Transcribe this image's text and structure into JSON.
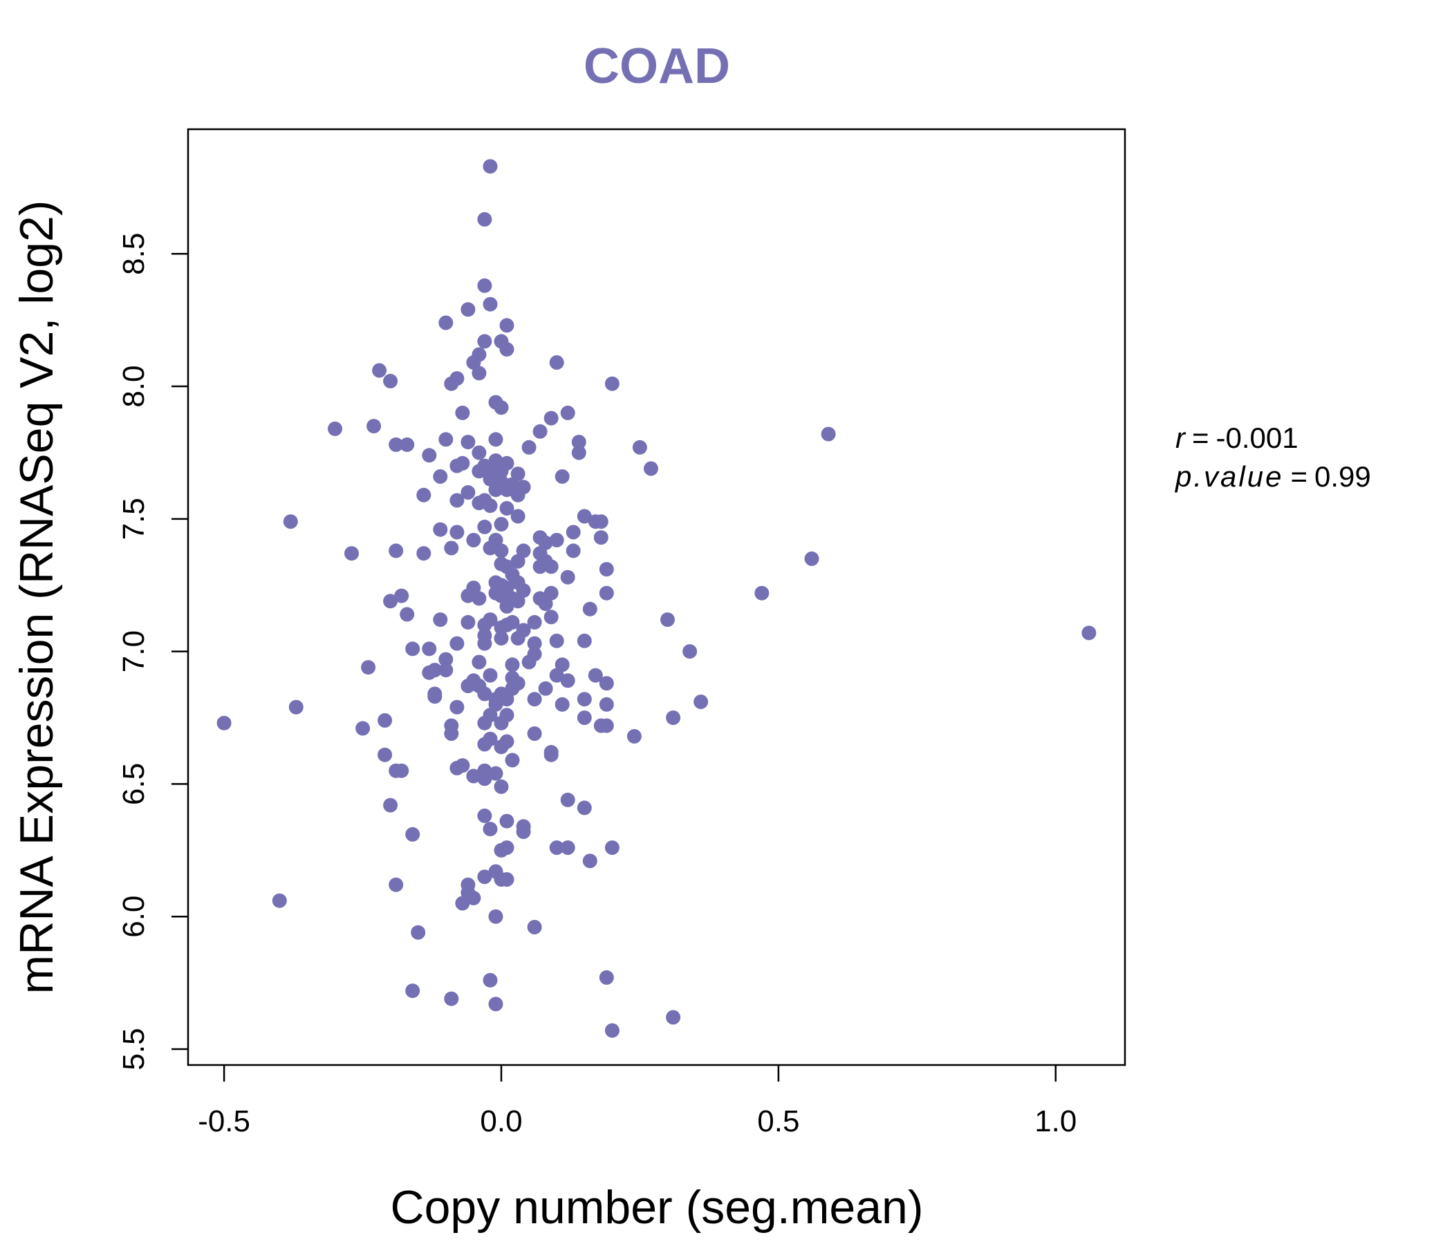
{
  "chart_data": {
    "type": "scatter",
    "title": "COAD",
    "xlabel": "Copy number (seg.mean)",
    "ylabel": "mRNA Expression (RNASeq V2, log2)",
    "xlim": [
      -0.565,
      1.125
    ],
    "ylim": [
      5.44,
      8.97
    ],
    "x_ticks": [
      -0.5,
      0.0,
      0.5,
      1.0
    ],
    "x_tick_labels": [
      "-0.5",
      "0.0",
      "0.5",
      "1.0"
    ],
    "y_ticks": [
      5.5,
      6.0,
      6.5,
      7.0,
      7.5,
      8.0,
      8.5
    ],
    "y_tick_labels": [
      "5.5",
      "6.0",
      "6.5",
      "7.0",
      "7.5",
      "8.0",
      "8.5"
    ],
    "grid": false,
    "legend": "none",
    "colors": {
      "points": "#7570b3",
      "title": "#7570b3",
      "axes": "#000000"
    },
    "annotation": {
      "r_symbol": "r",
      "r_value": "-0.001",
      "p_symbol": "p.value",
      "p_value": "0.99",
      "equals": "="
    },
    "series": [
      {
        "points": [
          [
            -0.02,
            8.83
          ],
          [
            -0.03,
            8.63
          ],
          [
            -0.03,
            8.38
          ],
          [
            -0.02,
            8.31
          ],
          [
            -0.06,
            8.29
          ],
          [
            -0.1,
            8.24
          ],
          [
            0.01,
            8.23
          ],
          [
            -0.03,
            8.17
          ],
          [
            0.0,
            8.17
          ],
          [
            0.01,
            8.14
          ],
          [
            -0.04,
            8.12
          ],
          [
            0.1,
            8.09
          ],
          [
            -0.05,
            8.09
          ],
          [
            -0.22,
            8.06
          ],
          [
            -0.04,
            8.05
          ],
          [
            -0.08,
            8.03
          ],
          [
            -0.2,
            8.02
          ],
          [
            -0.09,
            8.01
          ],
          [
            0.2,
            8.01
          ],
          [
            -0.01,
            7.94
          ],
          [
            0.0,
            7.92
          ],
          [
            0.12,
            7.9
          ],
          [
            -0.07,
            7.9
          ],
          [
            0.09,
            7.88
          ],
          [
            -0.3,
            7.84
          ],
          [
            -0.23,
            7.85
          ],
          [
            0.07,
            7.83
          ],
          [
            0.59,
            7.82
          ],
          [
            -0.01,
            7.8
          ],
          [
            -0.1,
            7.8
          ],
          [
            0.14,
            7.79
          ],
          [
            -0.06,
            7.79
          ],
          [
            -0.19,
            7.78
          ],
          [
            -0.17,
            7.78
          ],
          [
            0.25,
            7.77
          ],
          [
            0.05,
            7.77
          ],
          [
            0.14,
            7.75
          ],
          [
            -0.04,
            7.75
          ],
          [
            -0.13,
            7.74
          ],
          [
            -0.07,
            7.71
          ],
          [
            -0.08,
            7.7
          ],
          [
            0.27,
            7.69
          ],
          [
            -0.01,
            7.72
          ],
          [
            0.01,
            7.71
          ],
          [
            -0.03,
            7.7
          ],
          [
            -0.02,
            7.69
          ],
          [
            0.0,
            7.68
          ],
          [
            -0.04,
            7.68
          ],
          [
            0.03,
            7.67
          ],
          [
            0.11,
            7.66
          ],
          [
            -0.11,
            7.66
          ],
          [
            -0.02,
            7.65
          ],
          [
            0.0,
            7.64
          ],
          [
            0.02,
            7.63
          ],
          [
            0.04,
            7.62
          ],
          [
            -0.01,
            7.61
          ],
          [
            0.01,
            7.61
          ],
          [
            -0.06,
            7.6
          ],
          [
            0.03,
            7.59
          ],
          [
            -0.14,
            7.59
          ],
          [
            -0.03,
            7.57
          ],
          [
            -0.08,
            7.57
          ],
          [
            -0.04,
            7.56
          ],
          [
            -0.02,
            7.55
          ],
          [
            0.01,
            7.54
          ],
          [
            0.15,
            7.51
          ],
          [
            0.03,
            7.51
          ],
          [
            -0.38,
            7.49
          ],
          [
            0.17,
            7.49
          ],
          [
            0.18,
            7.49
          ],
          [
            0.0,
            7.48
          ],
          [
            -0.03,
            7.47
          ],
          [
            -0.11,
            7.46
          ],
          [
            -0.08,
            7.45
          ],
          [
            0.13,
            7.45
          ],
          [
            0.07,
            7.43
          ],
          [
            0.18,
            7.43
          ],
          [
            -0.05,
            7.42
          ],
          [
            0.1,
            7.42
          ],
          [
            -0.01,
            7.42
          ],
          [
            0.08,
            7.41
          ],
          [
            -0.02,
            7.39
          ],
          [
            -0.09,
            7.39
          ],
          [
            0.0,
            7.38
          ],
          [
            0.04,
            7.38
          ],
          [
            -0.19,
            7.38
          ],
          [
            -0.14,
            7.37
          ],
          [
            0.13,
            7.38
          ],
          [
            -0.27,
            7.37
          ],
          [
            0.07,
            7.37
          ],
          [
            0.56,
            7.35
          ],
          [
            0.03,
            7.34
          ],
          [
            0.08,
            7.34
          ],
          [
            0.0,
            7.33
          ],
          [
            0.19,
            7.31
          ],
          [
            0.01,
            7.32
          ],
          [
            0.07,
            7.32
          ],
          [
            0.09,
            7.32
          ],
          [
            0.12,
            7.28
          ],
          [
            0.02,
            7.29
          ],
          [
            -0.01,
            7.26
          ],
          [
            0.03,
            7.26
          ],
          [
            0.0,
            7.25
          ],
          [
            -0.05,
            7.24
          ],
          [
            0.01,
            7.24
          ],
          [
            0.04,
            7.23
          ],
          [
            0.19,
            7.22
          ],
          [
            0.47,
            7.22
          ],
          [
            -0.01,
            7.22
          ],
          [
            0.09,
            7.22
          ],
          [
            -0.06,
            7.21
          ],
          [
            -0.18,
            7.21
          ],
          [
            0.0,
            7.21
          ],
          [
            -0.04,
            7.2
          ],
          [
            0.07,
            7.2
          ],
          [
            0.02,
            7.2
          ],
          [
            -0.2,
            7.19
          ],
          [
            0.03,
            7.19
          ],
          [
            0.08,
            7.18
          ],
          [
            0.01,
            7.17
          ],
          [
            0.16,
            7.16
          ],
          [
            -0.17,
            7.14
          ],
          [
            0.09,
            7.13
          ],
          [
            -0.02,
            7.12
          ],
          [
            0.3,
            7.12
          ],
          [
            -0.11,
            7.12
          ],
          [
            -0.06,
            7.11
          ],
          [
            0.06,
            7.11
          ],
          [
            0.02,
            7.11
          ],
          [
            -0.03,
            7.1
          ],
          [
            0.01,
            7.1
          ],
          [
            0.0,
            7.09
          ],
          [
            0.04,
            7.08
          ],
          [
            1.06,
            7.07
          ],
          [
            -0.03,
            7.06
          ],
          [
            0.0,
            7.05
          ],
          [
            0.03,
            7.05
          ],
          [
            0.1,
            7.04
          ],
          [
            0.15,
            7.04
          ],
          [
            -0.03,
            7.03
          ],
          [
            -0.08,
            7.03
          ],
          [
            0.06,
            7.03
          ],
          [
            -0.13,
            7.01
          ],
          [
            -0.16,
            7.01
          ],
          [
            0.34,
            7.0
          ],
          [
            0.06,
            6.99
          ],
          [
            -0.1,
            6.97
          ],
          [
            0.05,
            6.96
          ],
          [
            -0.04,
            6.96
          ],
          [
            0.11,
            6.95
          ],
          [
            0.02,
            6.95
          ],
          [
            -0.24,
            6.94
          ],
          [
            -0.12,
            6.93
          ],
          [
            -0.1,
            6.93
          ],
          [
            -0.13,
            6.92
          ],
          [
            0.17,
            6.91
          ],
          [
            0.1,
            6.91
          ],
          [
            -0.02,
            6.91
          ],
          [
            0.02,
            6.9
          ],
          [
            0.12,
            6.89
          ],
          [
            -0.05,
            6.89
          ],
          [
            0.03,
            6.88
          ],
          [
            0.19,
            6.88
          ],
          [
            -0.06,
            6.87
          ],
          [
            -0.04,
            6.87
          ],
          [
            0.08,
            6.86
          ],
          [
            0.02,
            6.86
          ],
          [
            -0.03,
            6.84
          ],
          [
            -0.12,
            6.84
          ],
          [
            0.0,
            6.84
          ],
          [
            0.15,
            6.82
          ],
          [
            0.06,
            6.82
          ],
          [
            -0.01,
            6.82
          ],
          [
            -0.12,
            6.83
          ],
          [
            0.01,
            6.82
          ],
          [
            0.36,
            6.81
          ],
          [
            0.19,
            6.8
          ],
          [
            -0.01,
            6.8
          ],
          [
            0.11,
            6.8
          ],
          [
            -0.08,
            6.79
          ],
          [
            -0.37,
            6.79
          ],
          [
            -0.02,
            6.76
          ],
          [
            0.01,
            6.76
          ],
          [
            0.31,
            6.75
          ],
          [
            0.15,
            6.75
          ],
          [
            -0.21,
            6.74
          ],
          [
            0.0,
            6.73
          ],
          [
            -0.5,
            6.73
          ],
          [
            -0.03,
            6.73
          ],
          [
            -0.09,
            6.72
          ],
          [
            0.18,
            6.72
          ],
          [
            0.19,
            6.72
          ],
          [
            -0.25,
            6.71
          ],
          [
            0.06,
            6.69
          ],
          [
            -0.09,
            6.69
          ],
          [
            0.24,
            6.68
          ],
          [
            -0.02,
            6.67
          ],
          [
            0.01,
            6.66
          ],
          [
            -0.03,
            6.65
          ],
          [
            0.0,
            6.64
          ],
          [
            0.09,
            6.62
          ],
          [
            -0.21,
            6.61
          ],
          [
            0.09,
            6.61
          ],
          [
            0.02,
            6.59
          ],
          [
            -0.07,
            6.57
          ],
          [
            -0.08,
            6.56
          ],
          [
            -0.19,
            6.55
          ],
          [
            -0.18,
            6.55
          ],
          [
            -0.03,
            6.55
          ],
          [
            -0.01,
            6.54
          ],
          [
            -0.05,
            6.53
          ],
          [
            -0.03,
            6.52
          ],
          [
            0.0,
            6.49
          ],
          [
            0.12,
            6.44
          ],
          [
            -0.2,
            6.42
          ],
          [
            0.15,
            6.41
          ],
          [
            -0.03,
            6.38
          ],
          [
            0.01,
            6.36
          ],
          [
            0.04,
            6.34
          ],
          [
            -0.02,
            6.33
          ],
          [
            0.04,
            6.32
          ],
          [
            -0.16,
            6.31
          ],
          [
            0.1,
            6.26
          ],
          [
            0.12,
            6.26
          ],
          [
            0.2,
            6.26
          ],
          [
            0.01,
            6.26
          ],
          [
            0.0,
            6.25
          ],
          [
            0.16,
            6.21
          ],
          [
            -0.01,
            6.17
          ],
          [
            -0.03,
            6.15
          ],
          [
            0.01,
            6.14
          ],
          [
            0.0,
            6.14
          ],
          [
            -0.06,
            6.12
          ],
          [
            -0.19,
            6.12
          ],
          [
            -0.06,
            6.09
          ],
          [
            -0.05,
            6.07
          ],
          [
            -0.07,
            6.05
          ],
          [
            -0.4,
            6.06
          ],
          [
            -0.01,
            6.0
          ],
          [
            0.06,
            5.96
          ],
          [
            -0.15,
            5.94
          ],
          [
            0.19,
            5.77
          ],
          [
            -0.02,
            5.76
          ],
          [
            -0.16,
            5.72
          ],
          [
            -0.09,
            5.69
          ],
          [
            -0.01,
            5.67
          ],
          [
            0.31,
            5.62
          ],
          [
            0.2,
            5.57
          ]
        ]
      }
    ]
  }
}
